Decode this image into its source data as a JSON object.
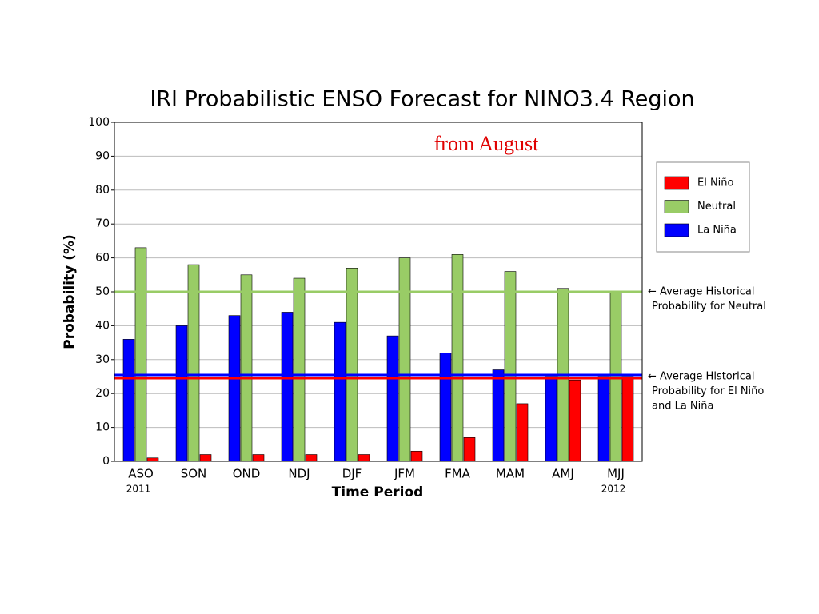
{
  "chart_data": {
    "type": "bar",
    "title": "IRI Probabilistic ENSO Forecast for NINO3.4 Region",
    "subtitle": "from August",
    "x_label": "Time Period",
    "y_label": "Probability (%)",
    "categories": [
      "ASO",
      "SON",
      "OND",
      "NDJ",
      "DJF",
      "JFM",
      "FMA",
      "MAM",
      "AMJ",
      "MJJ"
    ],
    "year_labels": [
      "2011",
      null,
      null,
      null,
      null,
      null,
      null,
      null,
      null,
      "2012"
    ],
    "series": [
      {
        "name": "El Niño",
        "color": "#ff0000",
        "values": [
          1,
          2,
          2,
          2,
          2,
          3,
          7,
          17,
          24,
          25
        ]
      },
      {
        "name": "Neutral",
        "color": "#99cc66",
        "values": [
          63,
          58,
          55,
          54,
          57,
          60,
          61,
          56,
          51,
          50
        ]
      },
      {
        "name": "La Niña",
        "color": "#0000ff",
        "values": [
          36,
          40,
          43,
          44,
          41,
          37,
          32,
          27,
          25,
          25
        ]
      }
    ],
    "ylim": [
      0,
      100
    ],
    "yticks": [
      0,
      10,
      20,
      30,
      40,
      50,
      60,
      70,
      80,
      90,
      100
    ],
    "grid": true,
    "legend": "upper right",
    "reference_lines": [
      {
        "value": 50,
        "color": "#99cc66",
        "label": [
          "← Average Historical",
          "Probability for Neutral"
        ]
      },
      {
        "value": 25,
        "color": "#0000ff",
        "label": [
          "← Average Historical",
          "Probability for El Niño",
          "and La Niña"
        ]
      },
      {
        "value": 25,
        "color": "#ff0000"
      }
    ]
  }
}
